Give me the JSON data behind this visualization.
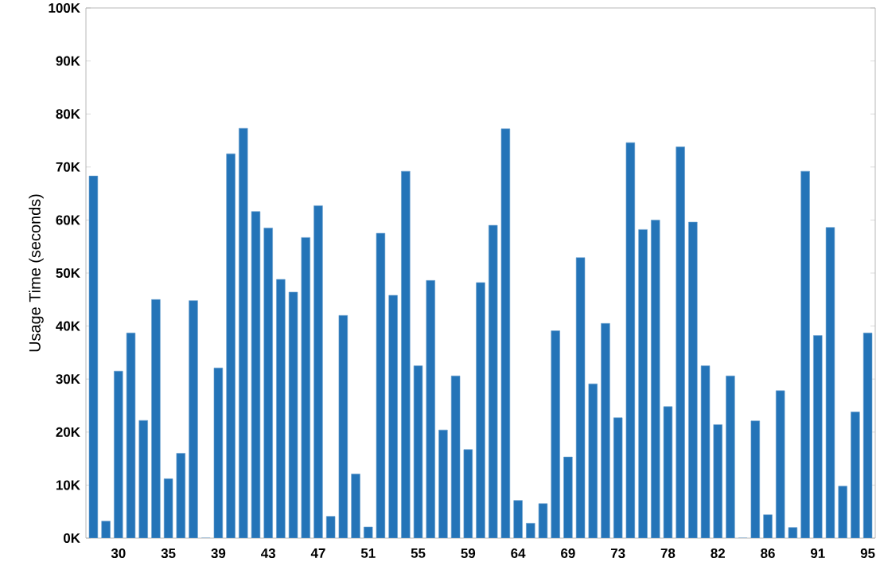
{
  "chart_data": {
    "type": "bar",
    "ylabel": "Usage Time (seconds)",
    "categories": [
      null,
      null,
      "30",
      null,
      null,
      null,
      "35",
      null,
      null,
      null,
      "39",
      null,
      null,
      null,
      "43",
      null,
      null,
      null,
      "47",
      null,
      null,
      null,
      "51",
      null,
      null,
      null,
      "55",
      null,
      null,
      null,
      "59",
      null,
      null,
      null,
      "64",
      null,
      null,
      null,
      "69",
      null,
      null,
      null,
      "73",
      null,
      null,
      null,
      "78",
      null,
      null,
      null,
      "82",
      null,
      null,
      null,
      "86",
      null,
      null,
      null,
      "91",
      null,
      null,
      null,
      "95"
    ],
    "values": [
      68300,
      3200,
      31500,
      38700,
      22200,
      45000,
      11200,
      16000,
      44800,
      0,
      32100,
      72500,
      77300,
      61600,
      58500,
      48800,
      46400,
      56700,
      62700,
      4100,
      42000,
      12100,
      2100,
      57500,
      45800,
      69200,
      32500,
      48600,
      20400,
      30600,
      16700,
      48200,
      59000,
      77200,
      7100,
      2800,
      6500,
      39100,
      15300,
      52900,
      29100,
      40500,
      22700,
      74600,
      58200,
      60000,
      24800,
      73800,
      59600,
      32500,
      21400,
      30600,
      0,
      22100,
      4400,
      27800,
      2000,
      69200,
      38200,
      58600,
      9800,
      23800,
      38700
    ],
    "color": "#2474b8",
    "ylim": [
      0,
      100000
    ],
    "yticks": [
      {
        "value": 0,
        "label": "0K"
      },
      {
        "value": 10000,
        "label": "10K"
      },
      {
        "value": 20000,
        "label": "20K"
      },
      {
        "value": 30000,
        "label": "30K"
      },
      {
        "value": 40000,
        "label": "40K"
      },
      {
        "value": 50000,
        "label": "50K"
      },
      {
        "value": 60000,
        "label": "60K"
      },
      {
        "value": 70000,
        "label": "70K"
      },
      {
        "value": 80000,
        "label": "80K"
      },
      {
        "value": 90000,
        "label": "90K"
      },
      {
        "value": 100000,
        "label": "100K"
      }
    ],
    "grid": false
  }
}
